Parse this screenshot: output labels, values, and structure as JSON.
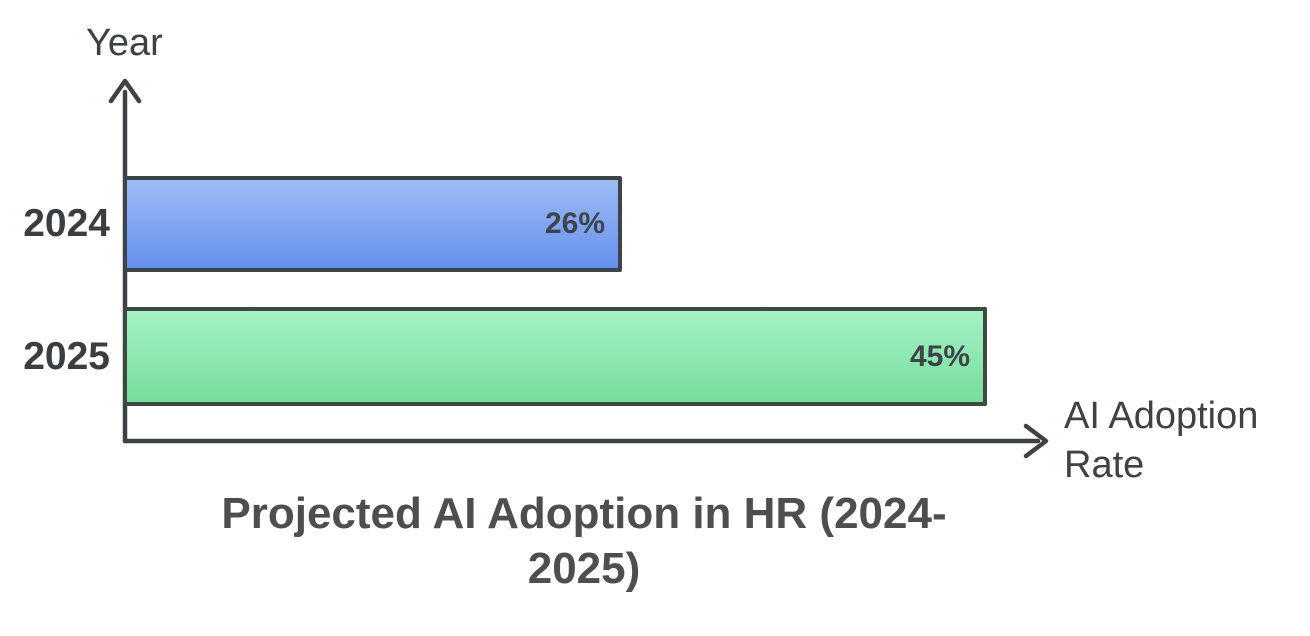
{
  "chart": {
    "title": "Projected AI Adoption in HR (2024-2025)",
    "y_axis_label": "Year",
    "x_axis_label": "AI Adoption Rate",
    "axis_color": "#3f4245",
    "bars": [
      {
        "category": "2024",
        "value": 26,
        "value_label": "26%",
        "fill_top": "#9dbcf4",
        "fill_bottom": "#6590ee",
        "border_color": "#3e444b"
      },
      {
        "category": "2025",
        "value": 45,
        "value_label": "45%",
        "fill_top": "#a3f1c6",
        "fill_bottom": "#78de9b",
        "border_color": "#3c4a41"
      }
    ]
  },
  "chart_data": {
    "type": "bar",
    "orientation": "horizontal",
    "title": "Projected AI Adoption in HR (2024-2025)",
    "xlabel": "AI Adoption Rate",
    "ylabel": "Year",
    "categories": [
      "2024",
      "2025"
    ],
    "values": [
      26,
      45
    ],
    "value_labels": [
      "26%",
      "45%"
    ],
    "xlim": [
      0,
      48
    ],
    "grid": false,
    "legend": false,
    "bar_colors": [
      "#6590ee",
      "#78de9b"
    ]
  }
}
